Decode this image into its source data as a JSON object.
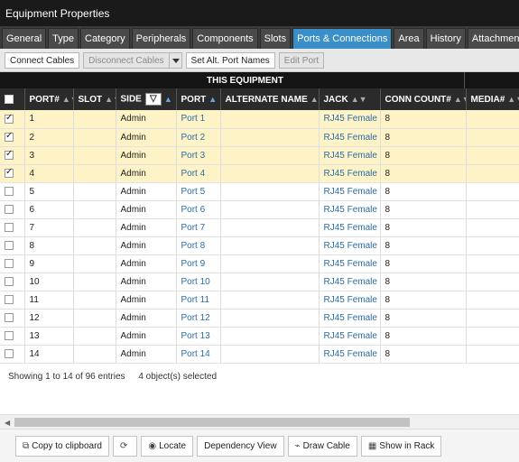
{
  "window": {
    "title": "Equipment Properties"
  },
  "tabs": [
    {
      "label": "General"
    },
    {
      "label": "Type"
    },
    {
      "label": "Category"
    },
    {
      "label": "Peripherals"
    },
    {
      "label": "Components"
    },
    {
      "label": "Slots"
    },
    {
      "label": "Ports & Connections"
    },
    {
      "label": "Area"
    },
    {
      "label": "History"
    },
    {
      "label": "Attachments"
    }
  ],
  "active_tab": "Ports & Connections",
  "toolbar": {
    "connect_cables": "Connect Cables",
    "disconnect_cables": "Disconnect Cables",
    "set_alt_port_names": "Set Alt. Port Names",
    "edit_port": "Edit Port"
  },
  "table": {
    "group_label": "THIS EQUIPMENT",
    "columns": [
      "PORT#",
      "SLOT",
      "SIDE",
      "PORT",
      "ALTERNATE NAME",
      "JACK",
      "CONN COUNT#",
      "MEDIA#"
    ],
    "rows": [
      {
        "selected": true,
        "port_num": "1",
        "slot": "",
        "side": "Admin",
        "port": "Port 1",
        "alt_name": "",
        "jack": "RJ45 Female",
        "conn_count": "8",
        "media": ""
      },
      {
        "selected": true,
        "port_num": "2",
        "slot": "",
        "side": "Admin",
        "port": "Port 2",
        "alt_name": "",
        "jack": "RJ45 Female",
        "conn_count": "8",
        "media": ""
      },
      {
        "selected": true,
        "port_num": "3",
        "slot": "",
        "side": "Admin",
        "port": "Port 3",
        "alt_name": "",
        "jack": "RJ45 Female",
        "conn_count": "8",
        "media": ""
      },
      {
        "selected": true,
        "port_num": "4",
        "slot": "",
        "side": "Admin",
        "port": "Port 4",
        "alt_name": "",
        "jack": "RJ45 Female",
        "conn_count": "8",
        "media": ""
      },
      {
        "selected": false,
        "port_num": "5",
        "slot": "",
        "side": "Admin",
        "port": "Port 5",
        "alt_name": "",
        "jack": "RJ45 Female",
        "conn_count": "8",
        "media": ""
      },
      {
        "selected": false,
        "port_num": "6",
        "slot": "",
        "side": "Admin",
        "port": "Port 6",
        "alt_name": "",
        "jack": "RJ45 Female",
        "conn_count": "8",
        "media": ""
      },
      {
        "selected": false,
        "port_num": "7",
        "slot": "",
        "side": "Admin",
        "port": "Port 7",
        "alt_name": "",
        "jack": "RJ45 Female",
        "conn_count": "8",
        "media": ""
      },
      {
        "selected": false,
        "port_num": "8",
        "slot": "",
        "side": "Admin",
        "port": "Port 8",
        "alt_name": "",
        "jack": "RJ45 Female",
        "conn_count": "8",
        "media": ""
      },
      {
        "selected": false,
        "port_num": "9",
        "slot": "",
        "side": "Admin",
        "port": "Port 9",
        "alt_name": "",
        "jack": "RJ45 Female",
        "conn_count": "8",
        "media": ""
      },
      {
        "selected": false,
        "port_num": "10",
        "slot": "",
        "side": "Admin",
        "port": "Port 10",
        "alt_name": "",
        "jack": "RJ45 Female",
        "conn_count": "8",
        "media": ""
      },
      {
        "selected": false,
        "port_num": "11",
        "slot": "",
        "side": "Admin",
        "port": "Port 11",
        "alt_name": "",
        "jack": "RJ45 Female",
        "conn_count": "8",
        "media": ""
      },
      {
        "selected": false,
        "port_num": "12",
        "slot": "",
        "side": "Admin",
        "port": "Port 12",
        "alt_name": "",
        "jack": "RJ45 Female",
        "conn_count": "8",
        "media": ""
      },
      {
        "selected": false,
        "port_num": "13",
        "slot": "",
        "side": "Admin",
        "port": "Port 13",
        "alt_name": "",
        "jack": "RJ45 Female",
        "conn_count": "8",
        "media": ""
      },
      {
        "selected": false,
        "port_num": "14",
        "slot": "",
        "side": "Admin",
        "port": "Port 14",
        "alt_name": "",
        "jack": "RJ45 Female",
        "conn_count": "8",
        "media": ""
      }
    ]
  },
  "status": {
    "showing": "Showing 1 to 14 of 96 entries",
    "selected": "4 object(s) selected"
  },
  "bottom_buttons": {
    "copy": "Copy to clipboard",
    "refresh_icon": "refresh-icon",
    "locate": "Locate",
    "dependency_view": "Dependency View",
    "draw_cable": "Draw Cable",
    "show_in_rack": "Show in Rack"
  },
  "colors": {
    "titlebar_bg": "#1a1a1a",
    "active_tab_bg": "#3a8fc9",
    "selected_row_bg": "#fdf3c6",
    "link_color": "#2a6ca8",
    "header_bg": "#2b2b2b"
  }
}
